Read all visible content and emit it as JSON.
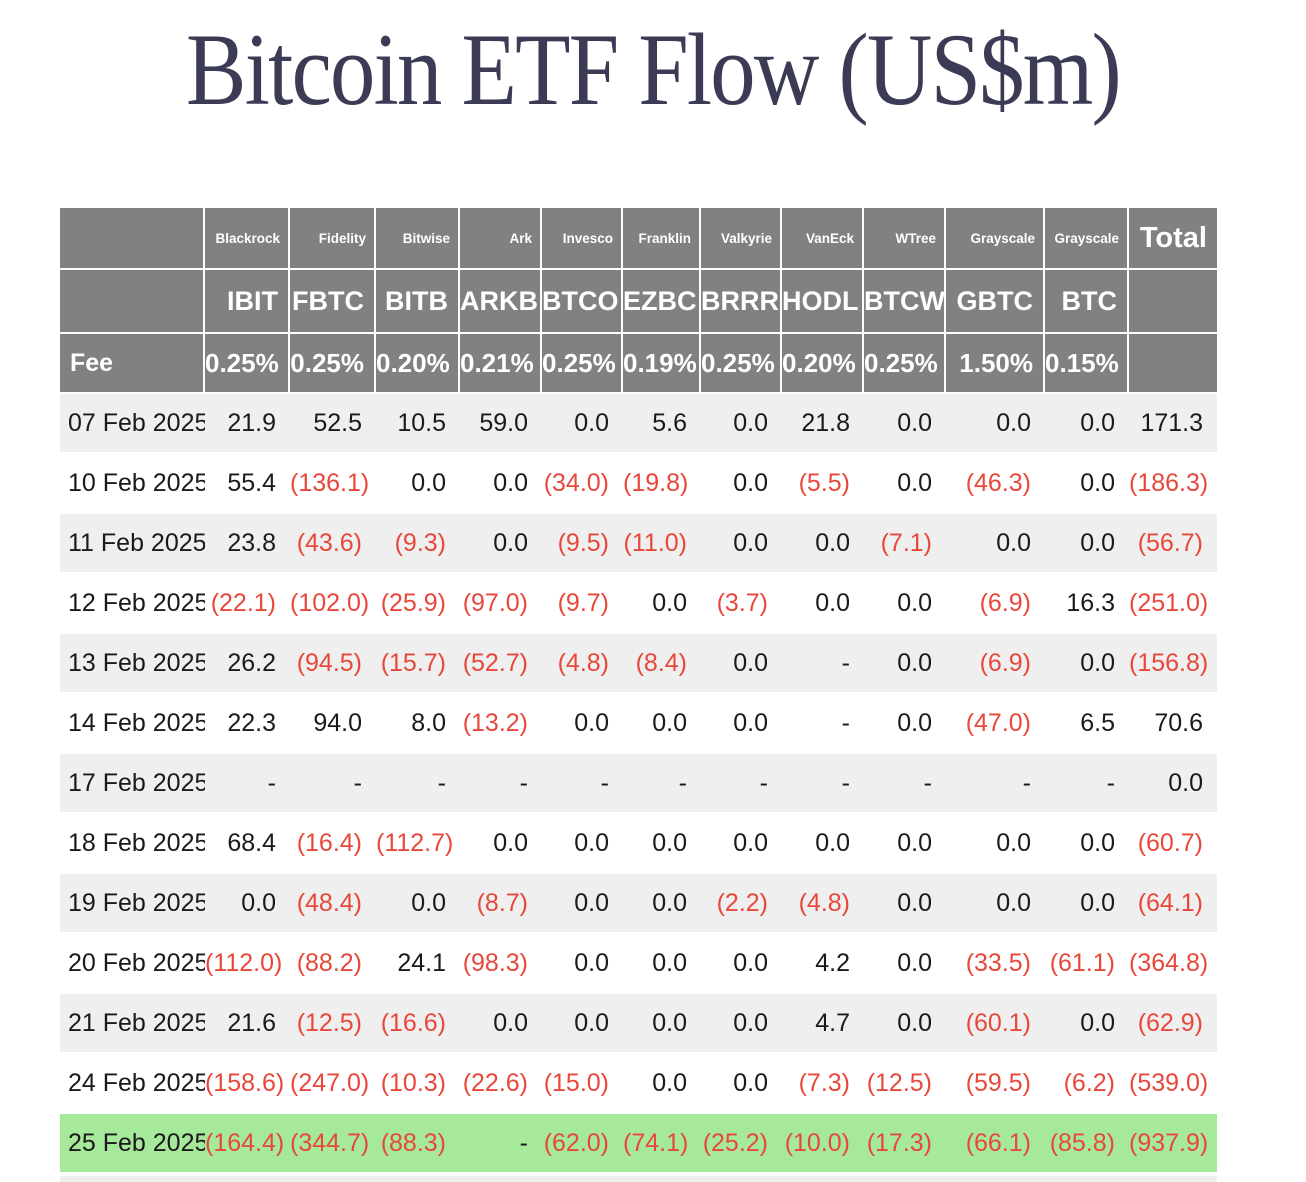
{
  "title": "Bitcoin ETF Flow (US$m)",
  "colors": {
    "header_bg": "#818181",
    "stripe_bg": "#efefef",
    "highlight_bg": "#a6e99b",
    "negative_text": "#e8473a",
    "positive_text": "#1a1a1a",
    "title_text": "#3b3b55"
  },
  "table": {
    "fee_label": "Fee",
    "total_label": "Total",
    "columns": [
      {
        "issuer": "Blackrock",
        "ticker": "IBIT",
        "fee": "0.25%"
      },
      {
        "issuer": "Fidelity",
        "ticker": "FBTC",
        "fee": "0.25%"
      },
      {
        "issuer": "Bitwise",
        "ticker": "BITB",
        "fee": "0.20%"
      },
      {
        "issuer": "Ark",
        "ticker": "ARKB",
        "fee": "0.21%"
      },
      {
        "issuer": "Invesco",
        "ticker": "BTCO",
        "fee": "0.25%"
      },
      {
        "issuer": "Franklin",
        "ticker": "EZBC",
        "fee": "0.19%"
      },
      {
        "issuer": "Valkyrie",
        "ticker": "BRRR",
        "fee": "0.25%"
      },
      {
        "issuer": "VanEck",
        "ticker": "HODL",
        "fee": "0.20%"
      },
      {
        "issuer": "WTree",
        "ticker": "BTCW",
        "fee": "0.25%"
      },
      {
        "issuer": "Grayscale",
        "ticker": "GBTC",
        "fee": "1.50%"
      },
      {
        "issuer": "Grayscale",
        "ticker": "BTC",
        "fee": "0.15%"
      }
    ],
    "rows": [
      {
        "date": "07 Feb 2025",
        "values": [
          "21.9",
          "52.5",
          "10.5",
          "59.0",
          "0.0",
          "5.6",
          "0.0",
          "21.8",
          "0.0",
          "0.0",
          "0.0"
        ],
        "total": "171.3",
        "highlight": false
      },
      {
        "date": "10 Feb 2025",
        "values": [
          "55.4",
          "(136.1)",
          "0.0",
          "0.0",
          "(34.0)",
          "(19.8)",
          "0.0",
          "(5.5)",
          "0.0",
          "(46.3)",
          "0.0"
        ],
        "total": "(186.3)",
        "highlight": false
      },
      {
        "date": "11 Feb 2025",
        "values": [
          "23.8",
          "(43.6)",
          "(9.3)",
          "0.0",
          "(9.5)",
          "(11.0)",
          "0.0",
          "0.0",
          "(7.1)",
          "0.0",
          "0.0"
        ],
        "total": "(56.7)",
        "highlight": false
      },
      {
        "date": "12 Feb 2025",
        "values": [
          "(22.1)",
          "(102.0)",
          "(25.9)",
          "(97.0)",
          "(9.7)",
          "0.0",
          "(3.7)",
          "0.0",
          "0.0",
          "(6.9)",
          "16.3"
        ],
        "total": "(251.0)",
        "highlight": false
      },
      {
        "date": "13 Feb 2025",
        "values": [
          "26.2",
          "(94.5)",
          "(15.7)",
          "(52.7)",
          "(4.8)",
          "(8.4)",
          "0.0",
          "-",
          "0.0",
          "(6.9)",
          "0.0"
        ],
        "total": "(156.8)",
        "highlight": false
      },
      {
        "date": "14 Feb 2025",
        "values": [
          "22.3",
          "94.0",
          "8.0",
          "(13.2)",
          "0.0",
          "0.0",
          "0.0",
          "-",
          "0.0",
          "(47.0)",
          "6.5"
        ],
        "total": "70.6",
        "highlight": false
      },
      {
        "date": "17 Feb 2025",
        "values": [
          "-",
          "-",
          "-",
          "-",
          "-",
          "-",
          "-",
          "-",
          "-",
          "-",
          "-"
        ],
        "total": "0.0",
        "highlight": false
      },
      {
        "date": "18 Feb 2025",
        "values": [
          "68.4",
          "(16.4)",
          "(112.7)",
          "0.0",
          "0.0",
          "0.0",
          "0.0",
          "0.0",
          "0.0",
          "0.0",
          "0.0"
        ],
        "total": "(60.7)",
        "highlight": false
      },
      {
        "date": "19 Feb 2025",
        "values": [
          "0.0",
          "(48.4)",
          "0.0",
          "(8.7)",
          "0.0",
          "0.0",
          "(2.2)",
          "(4.8)",
          "0.0",
          "0.0",
          "0.0"
        ],
        "total": "(64.1)",
        "highlight": false
      },
      {
        "date": "20 Feb 2025",
        "values": [
          "(112.0)",
          "(88.2)",
          "24.1",
          "(98.3)",
          "0.0",
          "0.0",
          "0.0",
          "4.2",
          "0.0",
          "(33.5)",
          "(61.1)"
        ],
        "total": "(364.8)",
        "highlight": false
      },
      {
        "date": "21 Feb 2025",
        "values": [
          "21.6",
          "(12.5)",
          "(16.6)",
          "0.0",
          "0.0",
          "0.0",
          "0.0",
          "4.7",
          "0.0",
          "(60.1)",
          "0.0"
        ],
        "total": "(62.9)",
        "highlight": false
      },
      {
        "date": "24 Feb 2025",
        "values": [
          "(158.6)",
          "(247.0)",
          "(10.3)",
          "(22.6)",
          "(15.0)",
          "0.0",
          "0.0",
          "(7.3)",
          "(12.5)",
          "(59.5)",
          "(6.2)"
        ],
        "total": "(539.0)",
        "highlight": false
      },
      {
        "date": "25 Feb 2025",
        "values": [
          "(164.4)",
          "(344.7)",
          "(88.3)",
          "-",
          "(62.0)",
          "(74.1)",
          "(25.2)",
          "(10.0)",
          "(17.3)",
          "(66.1)",
          "(85.8)"
        ],
        "total": "(937.9)",
        "highlight": true
      }
    ]
  },
  "chart_data": {
    "type": "table",
    "title": "Bitcoin ETF Flow (US$m)",
    "issuers": [
      "Blackrock",
      "Fidelity",
      "Bitwise",
      "Ark",
      "Invesco",
      "Franklin",
      "Valkyrie",
      "VanEck",
      "WTree",
      "Grayscale",
      "Grayscale"
    ],
    "columns": [
      "IBIT",
      "FBTC",
      "BITB",
      "ARKB",
      "BTCO",
      "EZBC",
      "BRRR",
      "HODL",
      "BTCW",
      "GBTC",
      "BTC",
      "Total"
    ],
    "fees_pct": [
      0.25,
      0.25,
      0.2,
      0.21,
      0.25,
      0.19,
      0.25,
      0.2,
      0.25,
      1.5,
      0.15
    ],
    "rows": [
      {
        "date": "07 Feb 2025",
        "values": [
          21.9,
          52.5,
          10.5,
          59.0,
          0.0,
          5.6,
          0.0,
          21.8,
          0.0,
          0.0,
          0.0
        ],
        "total": 171.3
      },
      {
        "date": "10 Feb 2025",
        "values": [
          55.4,
          -136.1,
          0.0,
          0.0,
          -34.0,
          -19.8,
          0.0,
          -5.5,
          0.0,
          -46.3,
          0.0
        ],
        "total": -186.3
      },
      {
        "date": "11 Feb 2025",
        "values": [
          23.8,
          -43.6,
          -9.3,
          0.0,
          -9.5,
          -11.0,
          0.0,
          0.0,
          -7.1,
          0.0,
          0.0
        ],
        "total": -56.7
      },
      {
        "date": "12 Feb 2025",
        "values": [
          -22.1,
          -102.0,
          -25.9,
          -97.0,
          -9.7,
          0.0,
          -3.7,
          0.0,
          0.0,
          -6.9,
          16.3
        ],
        "total": -251.0
      },
      {
        "date": "13 Feb 2025",
        "values": [
          26.2,
          -94.5,
          -15.7,
          -52.7,
          -4.8,
          -8.4,
          0.0,
          null,
          0.0,
          -6.9,
          0.0
        ],
        "total": -156.8
      },
      {
        "date": "14 Feb 2025",
        "values": [
          22.3,
          94.0,
          8.0,
          -13.2,
          0.0,
          0.0,
          0.0,
          null,
          0.0,
          -47.0,
          6.5
        ],
        "total": 70.6
      },
      {
        "date": "17 Feb 2025",
        "values": [
          null,
          null,
          null,
          null,
          null,
          null,
          null,
          null,
          null,
          null,
          null
        ],
        "total": 0.0
      },
      {
        "date": "18 Feb 2025",
        "values": [
          68.4,
          -16.4,
          -112.7,
          0.0,
          0.0,
          0.0,
          0.0,
          0.0,
          0.0,
          0.0,
          0.0
        ],
        "total": -60.7
      },
      {
        "date": "19 Feb 2025",
        "values": [
          0.0,
          -48.4,
          0.0,
          -8.7,
          0.0,
          0.0,
          -2.2,
          -4.8,
          0.0,
          0.0,
          0.0
        ],
        "total": -64.1
      },
      {
        "date": "20 Feb 2025",
        "values": [
          -112.0,
          -88.2,
          24.1,
          -98.3,
          0.0,
          0.0,
          0.0,
          4.2,
          0.0,
          -33.5,
          -61.1
        ],
        "total": -364.8
      },
      {
        "date": "21 Feb 2025",
        "values": [
          21.6,
          -12.5,
          -16.6,
          0.0,
          0.0,
          0.0,
          0.0,
          4.7,
          0.0,
          -60.1,
          0.0
        ],
        "total": -62.9
      },
      {
        "date": "24 Feb 2025",
        "values": [
          -158.6,
          -247.0,
          -10.3,
          -22.6,
          -15.0,
          0.0,
          0.0,
          -7.3,
          -12.5,
          -59.5,
          -6.2
        ],
        "total": -539.0
      },
      {
        "date": "25 Feb 2025",
        "values": [
          -164.4,
          -344.7,
          -88.3,
          null,
          -62.0,
          -74.1,
          -25.2,
          -10.0,
          -17.3,
          -66.1,
          -85.8
        ],
        "total": -937.9
      }
    ],
    "notes": "Negative values shown in red parentheses; dash = no data; 25 Feb 2025 row highlighted green"
  }
}
